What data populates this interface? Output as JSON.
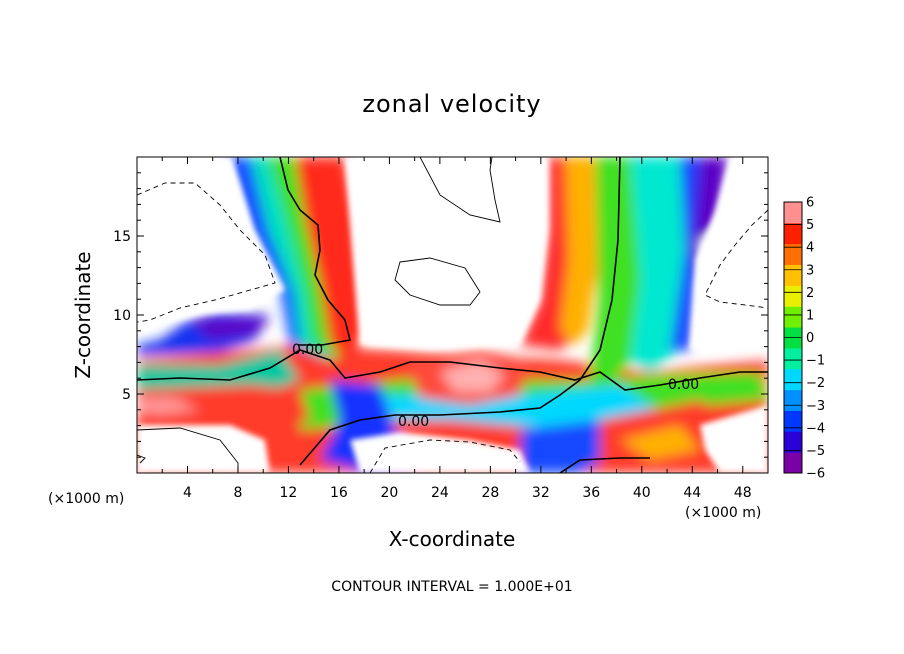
{
  "chart_data": {
    "type": "heatmap",
    "title": "zonal velocity",
    "xlabel": "X-coordinate",
    "ylabel": "Z-coordinate",
    "x_unit": "(×1000 m)",
    "y_unit": "(×1000 m)",
    "xlim": [
      0,
      50
    ],
    "ylim": [
      0,
      20
    ],
    "x_ticks": [
      4,
      8,
      12,
      16,
      20,
      24,
      28,
      32,
      36,
      40,
      44,
      48
    ],
    "y_ticks": [
      5,
      10,
      15
    ],
    "colorbar": {
      "ticks": [
        6,
        5,
        4,
        3,
        2,
        1,
        0,
        -1,
        -2,
        -3,
        -4,
        -5,
        -6
      ],
      "min": -6,
      "max": 6,
      "colors": [
        "#7a00a8",
        "#2c00d8",
        "#0038ff",
        "#0090ff",
        "#00d8ff",
        "#00f0a0",
        "#00e040",
        "#70f000",
        "#e8f000",
        "#ffc000",
        "#ff7000",
        "#ff2000",
        "#ff9090"
      ]
    },
    "contour_labels": [
      "0.00",
      "0.00",
      "0.00"
    ],
    "contour_interval_text": "CONTOUR INTERVAL = 1.000E+01"
  }
}
